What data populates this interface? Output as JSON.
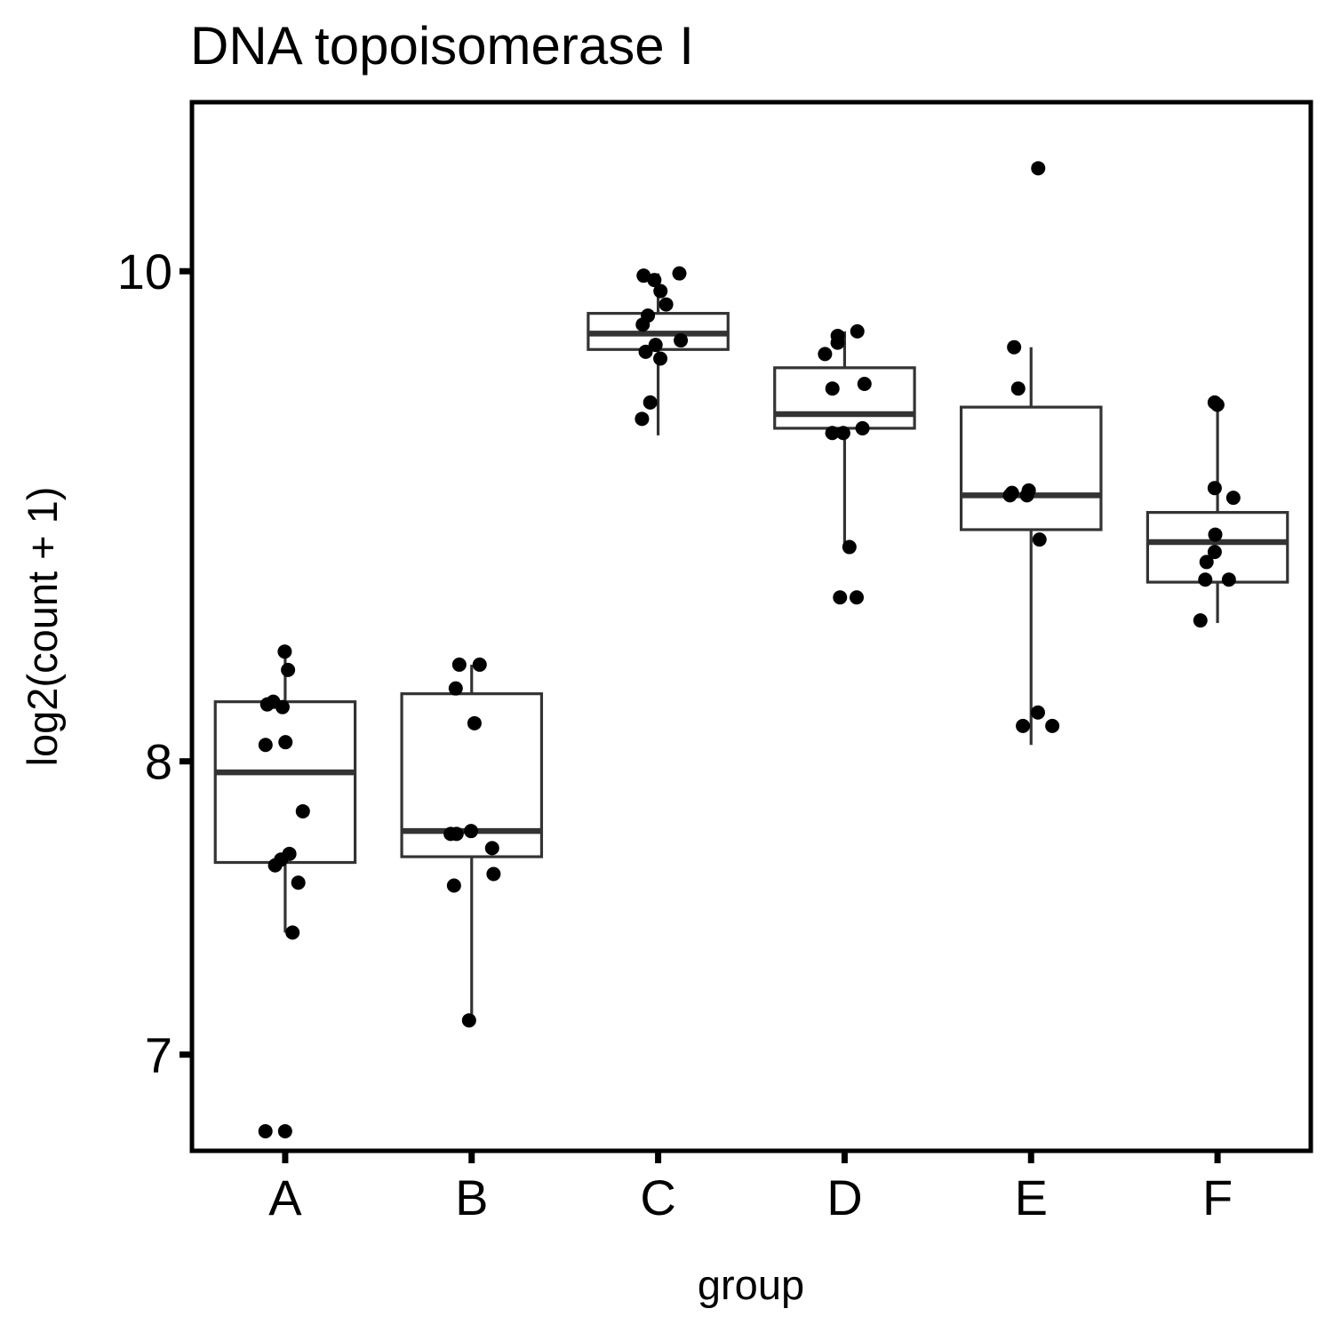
{
  "chart_data": {
    "type": "box",
    "title": "DNA topoisomerase I",
    "xlabel": "group",
    "ylabel": "log2(count + 1)",
    "scale": "log2 axis",
    "yticks": [
      7,
      8,
      10
    ],
    "ylim": [
      6.7,
      10.8
    ],
    "grid": false,
    "legend": "none",
    "categories": [
      "A",
      "B",
      "C",
      "D",
      "E",
      "F"
    ],
    "boxes": [
      {
        "group": "A",
        "whisker_low": 7.4,
        "q1": 7.64,
        "median": 7.96,
        "q3": 8.22,
        "whisker_high": 8.41
      },
      {
        "group": "B",
        "whisker_low": 7.11,
        "q1": 7.66,
        "median": 7.75,
        "q3": 8.25,
        "whisker_high": 8.36
      },
      {
        "group": "C",
        "whisker_low": 9.28,
        "q1": 9.65,
        "median": 9.72,
        "q3": 9.81,
        "whisker_high": 9.99
      },
      {
        "group": "D",
        "whisker_low": 8.82,
        "q1": 9.31,
        "median": 9.37,
        "q3": 9.57,
        "whisker_high": 9.73
      },
      {
        "group": "E",
        "whisker_low": 8.06,
        "q1": 8.89,
        "median": 9.03,
        "q3": 9.4,
        "whisker_high": 9.66
      },
      {
        "group": "F",
        "whisker_low": 8.52,
        "q1": 8.68,
        "median": 8.84,
        "q3": 8.96,
        "whisker_high": 9.42
      }
    ],
    "points": [
      {
        "group": "A",
        "values": [
          8.41,
          8.34,
          8.21,
          8.22,
          8.2,
          8.07,
          8.06,
          7.82,
          7.67,
          7.65,
          7.63,
          7.57,
          7.4,
          6.76,
          6.76
        ]
      },
      {
        "group": "B",
        "values": [
          8.36,
          8.36,
          8.27,
          8.14,
          7.75,
          7.74,
          7.74,
          7.69,
          7.6,
          7.56,
          7.11
        ]
      },
      {
        "group": "C",
        "values": [
          9.99,
          9.98,
          9.96,
          9.91,
          9.85,
          9.8,
          9.76,
          9.69,
          9.67,
          9.64,
          9.61,
          9.42,
          9.35
        ]
      },
      {
        "group": "D",
        "values": [
          9.73,
          9.71,
          9.68,
          9.63,
          9.5,
          9.48,
          9.31,
          9.29,
          9.29,
          8.82,
          8.62,
          8.62
        ]
      },
      {
        "group": "E",
        "values": [
          10.48,
          9.66,
          9.48,
          9.05,
          9.04,
          9.03,
          9.03,
          8.85,
          8.18,
          8.13,
          8.13
        ]
      },
      {
        "group": "F",
        "values": [
          9.42,
          9.41,
          9.06,
          9.02,
          8.87,
          8.8,
          8.76,
          8.69,
          8.69,
          8.53
        ]
      }
    ]
  }
}
